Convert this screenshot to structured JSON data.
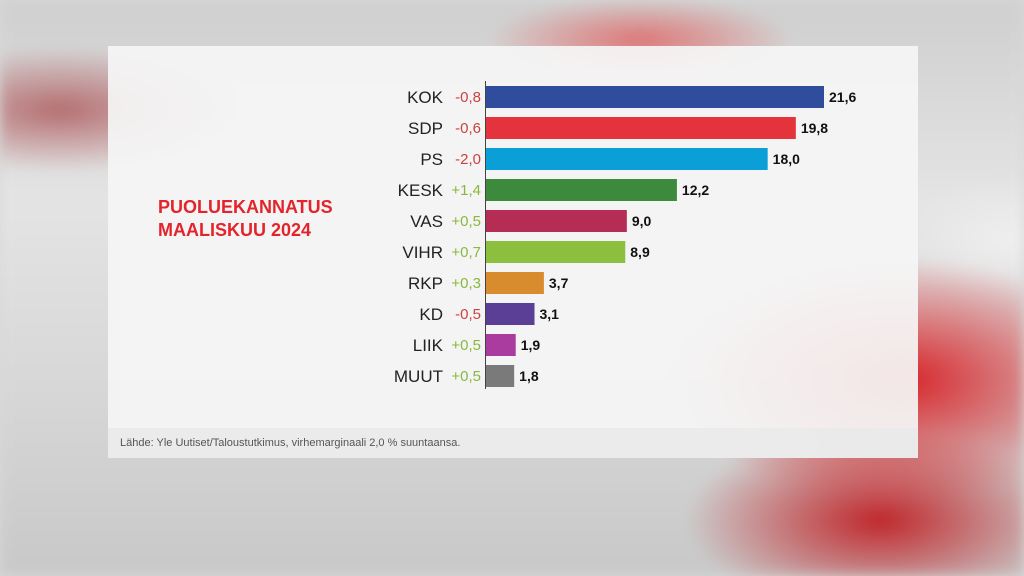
{
  "panel": {
    "title_line1": "PUOLUEKANNATUS",
    "title_line2": "MAALISKUU 2024",
    "source": "Lähde: Yle Uutiset/Taloustutkimus, virhemarginaali 2,0 % suuntaansa."
  },
  "colors": {
    "accent": "#e3242b",
    "change_positive": "#8ab83f",
    "change_negative": "#c9443f"
  },
  "chart_data": {
    "type": "bar",
    "orientation": "horizontal",
    "categories": [
      "KOK",
      "SDP",
      "PS",
      "KESK",
      "VAS",
      "VIHR",
      "RKP",
      "KD",
      "LIIK",
      "MUUT"
    ],
    "values": [
      21.6,
      19.8,
      18.0,
      12.2,
      9.0,
      8.9,
      3.7,
      3.1,
      1.9,
      1.8
    ],
    "value_labels": [
      "21,6",
      "19,8",
      "18,0",
      "12,2",
      "9,0",
      "8,9",
      "3,7",
      "3,1",
      "1,9",
      "1,8"
    ],
    "changes": [
      "-0,8",
      "-0,6",
      "-2,0",
      "+1,4",
      "+0,5",
      "+0,7",
      "+0,3",
      "-0,5",
      "+0,5",
      "+0,5"
    ],
    "bar_colors": [
      "#2f4d9c",
      "#e5333e",
      "#0a9fd7",
      "#3d8a3d",
      "#b52d55",
      "#8dbf3e",
      "#d98c2e",
      "#5b3f96",
      "#a93c9e",
      "#7a7a7a"
    ],
    "title": "PUOLUEKANNATUS MAALISKUU 2024",
    "xlim": [
      0,
      21.6
    ],
    "grid": false,
    "legend": "none"
  }
}
